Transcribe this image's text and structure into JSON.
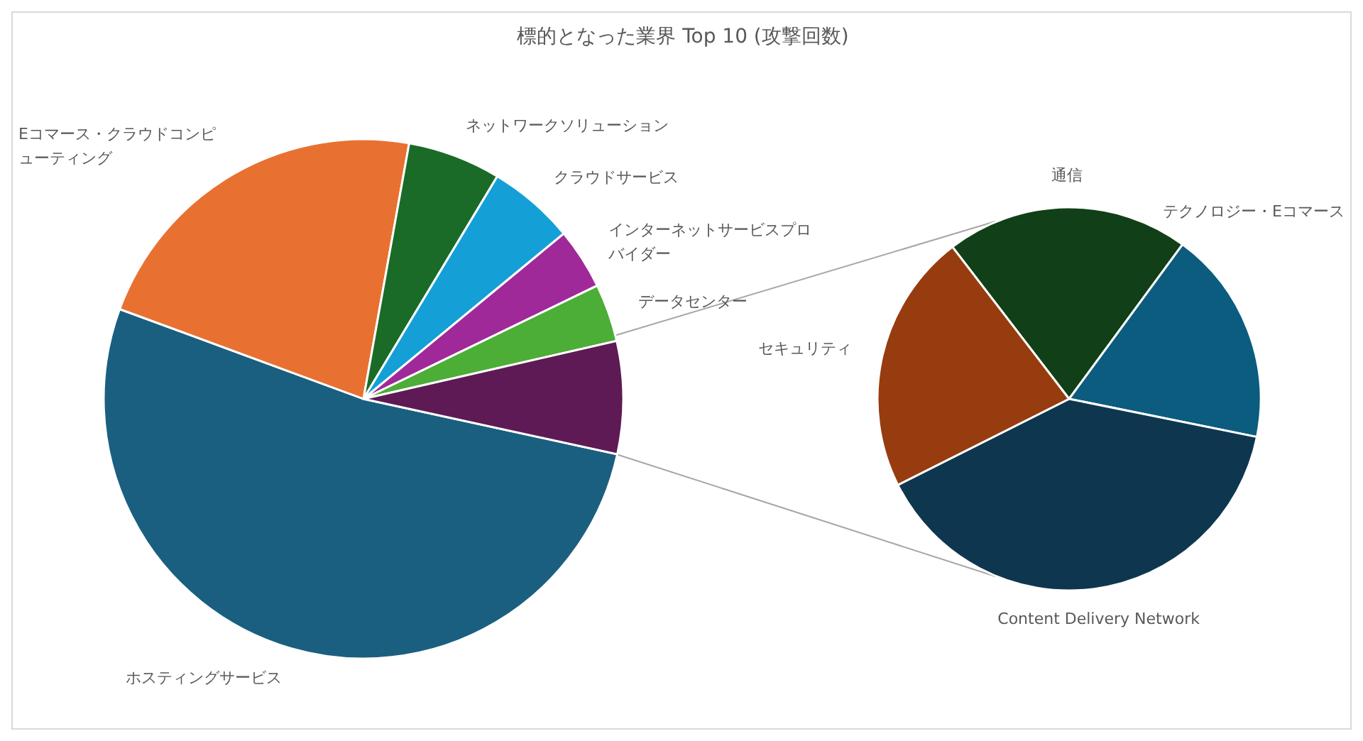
{
  "chart_data": [
    {
      "type": "pie",
      "title": "標的となった業界 Top 10 (攻撃回数)",
      "categories": [
        "ホスティングサービス",
        "Eコマース・クラウドコンピューティング",
        "ネットワークソリューション",
        "クラウドサービス",
        "インターネットサービスプロバイダー",
        "データセンター",
        null
      ],
      "values": [
        52.2,
        22.2,
        5.8,
        5.4,
        3.8,
        3.6,
        7.0
      ],
      "colors": [
        "#1a5f80",
        "#e87131",
        "#1a6b28",
        "#14a0d6",
        "#a0299a",
        "#4cad37",
        "#5e1a55"
      ]
    },
    {
      "type": "pie",
      "categories": [
        "通信",
        "テクノロジー・Eコマース",
        "Content Delivery Network",
        "セキュリティ"
      ],
      "values": [
        20.5,
        18.1,
        39.4,
        22.0
      ],
      "colors": [
        "#113f18",
        "#0b5c7f",
        "#0e374f",
        "#973c0f"
      ]
    }
  ]
}
